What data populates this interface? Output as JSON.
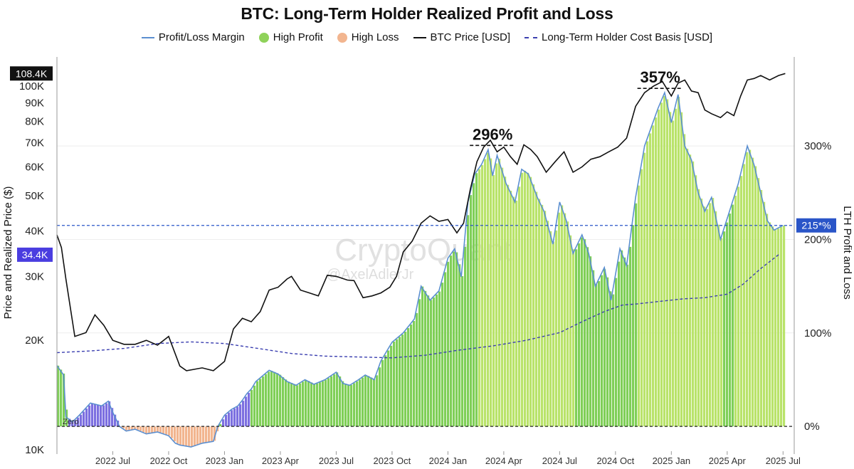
{
  "chart_data": {
    "type": "area",
    "title": "BTC: Long-Term Holder Realized Profit and Loss",
    "legend": [
      {
        "label": "Profit/Loss Margin",
        "kind": "line",
        "color": "#5b8fd0"
      },
      {
        "label": "High Profit",
        "kind": "dot",
        "color": "#8fd25a"
      },
      {
        "label": "High Loss",
        "kind": "dot",
        "color": "#f2b58f"
      },
      {
        "label": "BTC Price [USD]",
        "kind": "line",
        "color": "#111111"
      },
      {
        "label": "Long-Term Holder Cost Basis [USD]",
        "kind": "dash",
        "color": "#3b3fb0"
      }
    ],
    "left_axis": {
      "label": "Price and Realized Price ($)",
      "scale": "log",
      "range": [
        10000,
        110000
      ],
      "ticks": [
        {
          "value": 10000,
          "label": "10K"
        },
        {
          "value": 20000,
          "label": "20K"
        },
        {
          "value": 30000,
          "label": "30K"
        },
        {
          "value": 40000,
          "label": "40K"
        },
        {
          "value": 50000,
          "label": "50K"
        },
        {
          "value": 60000,
          "label": "60K"
        },
        {
          "value": 70000,
          "label": "70K"
        },
        {
          "value": 80000,
          "label": "80K"
        },
        {
          "value": 90000,
          "label": "90K"
        },
        {
          "value": 100000,
          "label": "100K"
        }
      ],
      "current_price_badge": {
        "value": 108400,
        "label": "108.4K"
      },
      "cost_basis_badge": {
        "value": 34400,
        "label": "34.4K"
      }
    },
    "right_axis": {
      "label": "LTH Profit and Loss",
      "range": [
        -25,
        380
      ],
      "ticks": [
        {
          "value": 0,
          "label": "0%"
        },
        {
          "value": 100,
          "label": "100%"
        },
        {
          "value": 200,
          "label": "200%"
        },
        {
          "value": 300,
          "label": "300%"
        }
      ],
      "current_badge": {
        "value": 215,
        "label": "215*%"
      }
    },
    "x_axis": {
      "ticks": [
        "2022 Jul",
        "2022 Oct",
        "2023 Jan",
        "2023 Apr",
        "2023 Jul",
        "2023 Oct",
        "2024 Jan",
        "2024 Apr",
        "2024 Jul",
        "2024 Oct",
        "2025 Jan",
        "2025 Apr",
        "2025 Jul"
      ],
      "range": [
        2022.25,
        2025.55
      ]
    },
    "zero_label": "Zero",
    "annotations": [
      {
        "label": "296%",
        "t": 2024.2,
        "value": 296
      },
      {
        "label": "357%",
        "t": 2024.95,
        "value": 357
      }
    ],
    "watermark": {
      "main": "CryptoQuant",
      "sub": "@AxelAdlerJr"
    },
    "series": {
      "margin_pct": [
        [
          2022.25,
          65
        ],
        [
          2022.28,
          55
        ],
        [
          2022.29,
          10
        ],
        [
          2022.32,
          5
        ],
        [
          2022.35,
          12
        ],
        [
          2022.4,
          25
        ],
        [
          2022.45,
          22
        ],
        [
          2022.48,
          27
        ],
        [
          2022.5,
          15
        ],
        [
          2022.53,
          0
        ],
        [
          2022.56,
          -5
        ],
        [
          2022.6,
          -3
        ],
        [
          2022.65,
          -8
        ],
        [
          2022.7,
          -6
        ],
        [
          2022.75,
          -10
        ],
        [
          2022.78,
          -18
        ],
        [
          2022.8,
          -20
        ],
        [
          2022.85,
          -22
        ],
        [
          2022.9,
          -18
        ],
        [
          2022.95,
          -16
        ],
        [
          2022.97,
          0
        ],
        [
          2023.0,
          12
        ],
        [
          2023.03,
          18
        ],
        [
          2023.06,
          22
        ],
        [
          2023.08,
          28
        ],
        [
          2023.1,
          35
        ],
        [
          2023.12,
          40
        ],
        [
          2023.14,
          48
        ],
        [
          2023.16,
          52
        ],
        [
          2023.2,
          60
        ],
        [
          2023.24,
          56
        ],
        [
          2023.28,
          48
        ],
        [
          2023.32,
          44
        ],
        [
          2023.36,
          50
        ],
        [
          2023.4,
          45
        ],
        [
          2023.45,
          50
        ],
        [
          2023.5,
          58
        ],
        [
          2023.53,
          46
        ],
        [
          2023.56,
          44
        ],
        [
          2023.6,
          50
        ],
        [
          2023.63,
          55
        ],
        [
          2023.67,
          50
        ],
        [
          2023.7,
          70
        ],
        [
          2023.75,
          90
        ],
        [
          2023.8,
          100
        ],
        [
          2023.85,
          115
        ],
        [
          2023.88,
          150
        ],
        [
          2023.92,
          135
        ],
        [
          2023.96,
          145
        ],
        [
          2024.0,
          180
        ],
        [
          2024.03,
          190
        ],
        [
          2024.06,
          160
        ],
        [
          2024.09,
          240
        ],
        [
          2024.12,
          270
        ],
        [
          2024.15,
          280
        ],
        [
          2024.18,
          296
        ],
        [
          2024.2,
          268
        ],
        [
          2024.22,
          290
        ],
        [
          2024.26,
          260
        ],
        [
          2024.3,
          240
        ],
        [
          2024.33,
          275
        ],
        [
          2024.36,
          270
        ],
        [
          2024.4,
          245
        ],
        [
          2024.43,
          230
        ],
        [
          2024.47,
          195
        ],
        [
          2024.5,
          240
        ],
        [
          2024.53,
          220
        ],
        [
          2024.56,
          185
        ],
        [
          2024.6,
          205
        ],
        [
          2024.63,
          185
        ],
        [
          2024.66,
          150
        ],
        [
          2024.7,
          170
        ],
        [
          2024.73,
          135
        ],
        [
          2024.77,
          190
        ],
        [
          2024.8,
          172
        ],
        [
          2024.84,
          245
        ],
        [
          2024.88,
          300
        ],
        [
          2024.91,
          320
        ],
        [
          2024.94,
          340
        ],
        [
          2024.97,
          357
        ],
        [
          2025.0,
          325
        ],
        [
          2025.03,
          355
        ],
        [
          2025.06,
          300
        ],
        [
          2025.09,
          285
        ],
        [
          2025.12,
          250
        ],
        [
          2025.15,
          230
        ],
        [
          2025.18,
          245
        ],
        [
          2025.22,
          200
        ],
        [
          2025.26,
          230
        ],
        [
          2025.3,
          260
        ],
        [
          2025.34,
          300
        ],
        [
          2025.37,
          280
        ],
        [
          2025.4,
          250
        ],
        [
          2025.43,
          220
        ],
        [
          2025.46,
          210
        ],
        [
          2025.5,
          215
        ]
      ],
      "btc_price": [
        [
          2022.25,
          39000
        ],
        [
          2022.27,
          36000
        ],
        [
          2022.29,
          29500
        ],
        [
          2022.33,
          20500
        ],
        [
          2022.38,
          21000
        ],
        [
          2022.42,
          23500
        ],
        [
          2022.46,
          22000
        ],
        [
          2022.5,
          20000
        ],
        [
          2022.55,
          19500
        ],
        [
          2022.6,
          19500
        ],
        [
          2022.65,
          20000
        ],
        [
          2022.7,
          19400
        ],
        [
          2022.75,
          20500
        ],
        [
          2022.8,
          17000
        ],
        [
          2022.83,
          16500
        ],
        [
          2022.9,
          16800
        ],
        [
          2022.95,
          16500
        ],
        [
          2023.0,
          17500
        ],
        [
          2023.04,
          21500
        ],
        [
          2023.08,
          23000
        ],
        [
          2023.12,
          22500
        ],
        [
          2023.16,
          24000
        ],
        [
          2023.2,
          27500
        ],
        [
          2023.24,
          28000
        ],
        [
          2023.28,
          29500
        ],
        [
          2023.3,
          30000
        ],
        [
          2023.34,
          27500
        ],
        [
          2023.38,
          27000
        ],
        [
          2023.42,
          26500
        ],
        [
          2023.46,
          30200
        ],
        [
          2023.5,
          30000
        ],
        [
          2023.55,
          29300
        ],
        [
          2023.58,
          29200
        ],
        [
          2023.62,
          26200
        ],
        [
          2023.66,
          26500
        ],
        [
          2023.7,
          27000
        ],
        [
          2023.74,
          28000
        ],
        [
          2023.77,
          30000
        ],
        [
          2023.8,
          35000
        ],
        [
          2023.84,
          37500
        ],
        [
          2023.88,
          42000
        ],
        [
          2023.92,
          44000
        ],
        [
          2023.96,
          42500
        ],
        [
          2024.0,
          43000
        ],
        [
          2024.04,
          39500
        ],
        [
          2024.07,
          42000
        ],
        [
          2024.1,
          52000
        ],
        [
          2024.13,
          62000
        ],
        [
          2024.16,
          68000
        ],
        [
          2024.19,
          71000
        ],
        [
          2024.22,
          66000
        ],
        [
          2024.25,
          68000
        ],
        [
          2024.28,
          64000
        ],
        [
          2024.31,
          61000
        ],
        [
          2024.34,
          69000
        ],
        [
          2024.37,
          67000
        ],
        [
          2024.4,
          64000
        ],
        [
          2024.44,
          58000
        ],
        [
          2024.48,
          62000
        ],
        [
          2024.52,
          66000
        ],
        [
          2024.56,
          58000
        ],
        [
          2024.6,
          60000
        ],
        [
          2024.64,
          63000
        ],
        [
          2024.68,
          64000
        ],
        [
          2024.72,
          66000
        ],
        [
          2024.76,
          68000
        ],
        [
          2024.8,
          72000
        ],
        [
          2024.84,
          88000
        ],
        [
          2024.88,
          96000
        ],
        [
          2024.92,
          100000
        ],
        [
          2024.96,
          103000
        ],
        [
          2025.0,
          94000
        ],
        [
          2025.03,
          102000
        ],
        [
          2025.06,
          104000
        ],
        [
          2025.09,
          97000
        ],
        [
          2025.12,
          96000
        ],
        [
          2025.15,
          86000
        ],
        [
          2025.18,
          84000
        ],
        [
          2025.22,
          82000
        ],
        [
          2025.25,
          85000
        ],
        [
          2025.28,
          83000
        ],
        [
          2025.31,
          94000
        ],
        [
          2025.34,
          104000
        ],
        [
          2025.37,
          105000
        ],
        [
          2025.4,
          107000
        ],
        [
          2025.44,
          104000
        ],
        [
          2025.48,
          107000
        ],
        [
          2025.51,
          108400
        ]
      ],
      "lth_cost_basis": [
        [
          2022.25,
          18500
        ],
        [
          2022.4,
          18700
        ],
        [
          2022.55,
          19000
        ],
        [
          2022.7,
          19600
        ],
        [
          2022.85,
          19800
        ],
        [
          2023.0,
          19600
        ],
        [
          2023.15,
          19000
        ],
        [
          2023.3,
          18400
        ],
        [
          2023.45,
          18100
        ],
        [
          2023.6,
          18000
        ],
        [
          2023.75,
          17900
        ],
        [
          2023.9,
          18200
        ],
        [
          2024.05,
          18800
        ],
        [
          2024.2,
          19300
        ],
        [
          2024.35,
          20000
        ],
        [
          2024.5,
          21000
        ],
        [
          2024.6,
          22500
        ],
        [
          2024.7,
          24000
        ],
        [
          2024.78,
          25000
        ],
        [
          2024.85,
          25200
        ],
        [
          2024.95,
          25600
        ],
        [
          2025.05,
          26000
        ],
        [
          2025.15,
          26200
        ],
        [
          2025.25,
          26800
        ],
        [
          2025.32,
          28500
        ],
        [
          2025.4,
          31500
        ],
        [
          2025.48,
          34400
        ]
      ]
    }
  }
}
